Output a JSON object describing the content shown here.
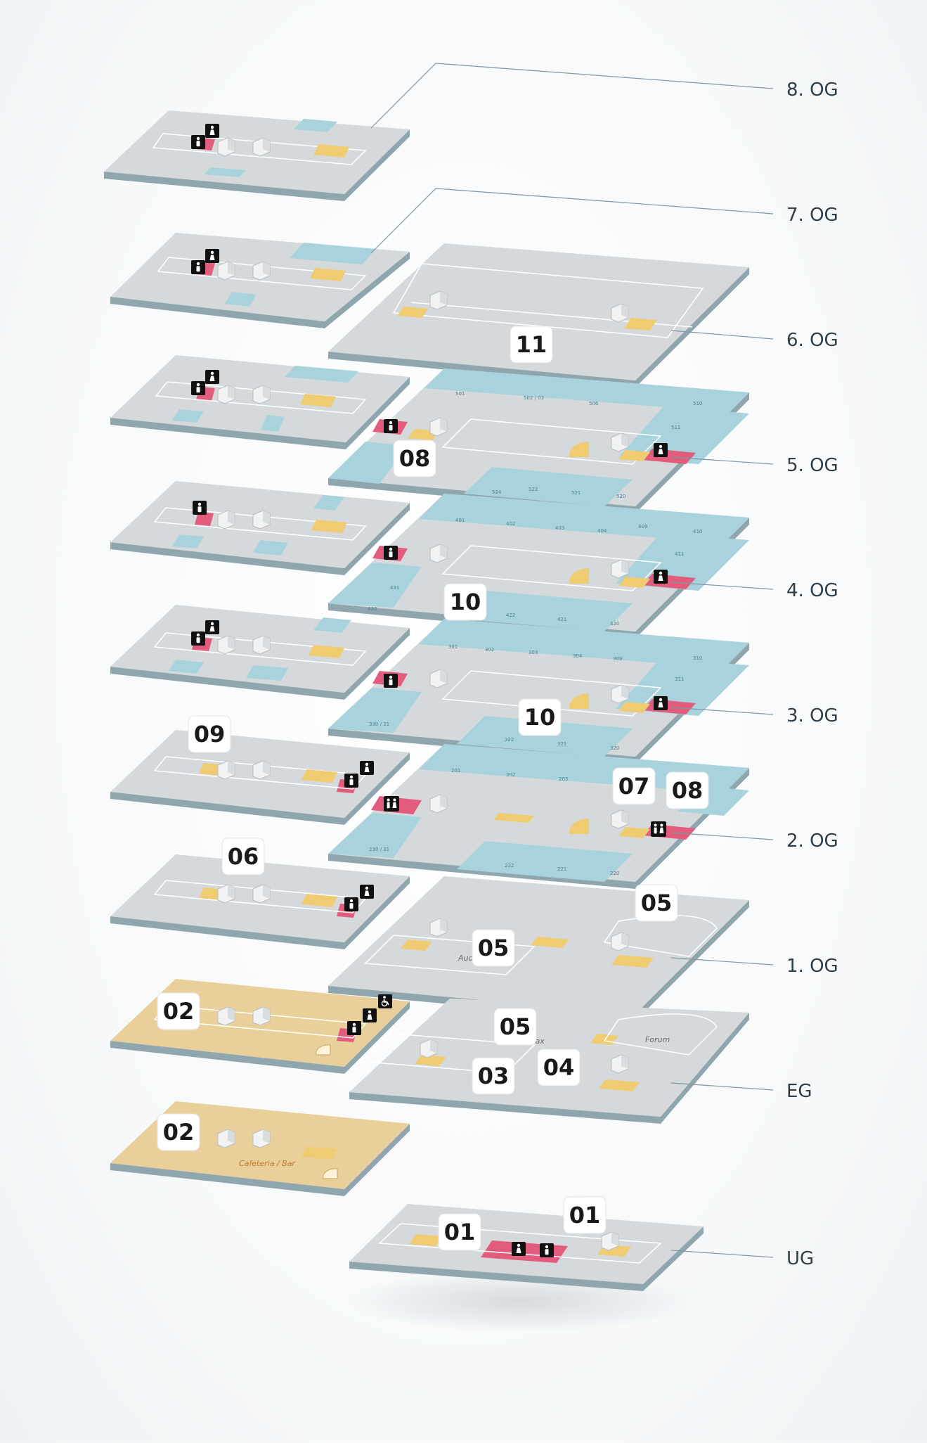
{
  "floor_labels": [
    "8. OG",
    "7. OG",
    "6. OG",
    "5. OG",
    "4. OG",
    "3. OG",
    "2. OG",
    "1. OG",
    "EG",
    "UG"
  ],
  "area_numbers": {
    "og6_main": "11",
    "og5_left": "08",
    "og4_main": "10",
    "og3_main": "10",
    "og3_left": "09",
    "og2_a": "07",
    "og2_b": "08",
    "og2_left": "06",
    "og1_a": "05",
    "og1_b": "05",
    "eg_left": "02",
    "eg_a": "05",
    "eg_b": "04",
    "eg_c": "03",
    "ug_left": "02",
    "ug_a": "01",
    "ug_b": "01"
  },
  "rooms": {
    "og5": [
      "501",
      "502 / 03",
      "506",
      "510",
      "511",
      "524",
      "522",
      "521",
      "520"
    ],
    "og4": [
      "401",
      "402",
      "403",
      "404",
      "409",
      "410",
      "411",
      "431",
      "430",
      "422",
      "421",
      "420"
    ],
    "og3": [
      "301",
      "302",
      "303",
      "304",
      "309",
      "310",
      "311",
      "330 / 31",
      "322",
      "321",
      "320"
    ],
    "og2": [
      "201",
      "202",
      "203",
      "230 / 31",
      "222",
      "221",
      "220"
    ]
  },
  "place_names": {
    "audimax_part1": "Aud",
    "audimax_part2": "Max",
    "forum": "Forum",
    "cafeteria": "Cafeteria / Bar"
  },
  "icons": {
    "female": "female-wc-icon",
    "male": "male-wc-icon",
    "unisex": "unisex-wc-icon",
    "accessible": "wheelchair-icon"
  },
  "colors": {
    "floor_top": "#d5d9db",
    "floor_edge": "#8fa6af",
    "room_blue": "#a9d3dc",
    "cafeteria": "#e9cf9a",
    "wc_pink": "#e15c7d",
    "stairs": "#efcb72",
    "label_text": "#2f3f4a",
    "leader": "#7f98a2"
  }
}
